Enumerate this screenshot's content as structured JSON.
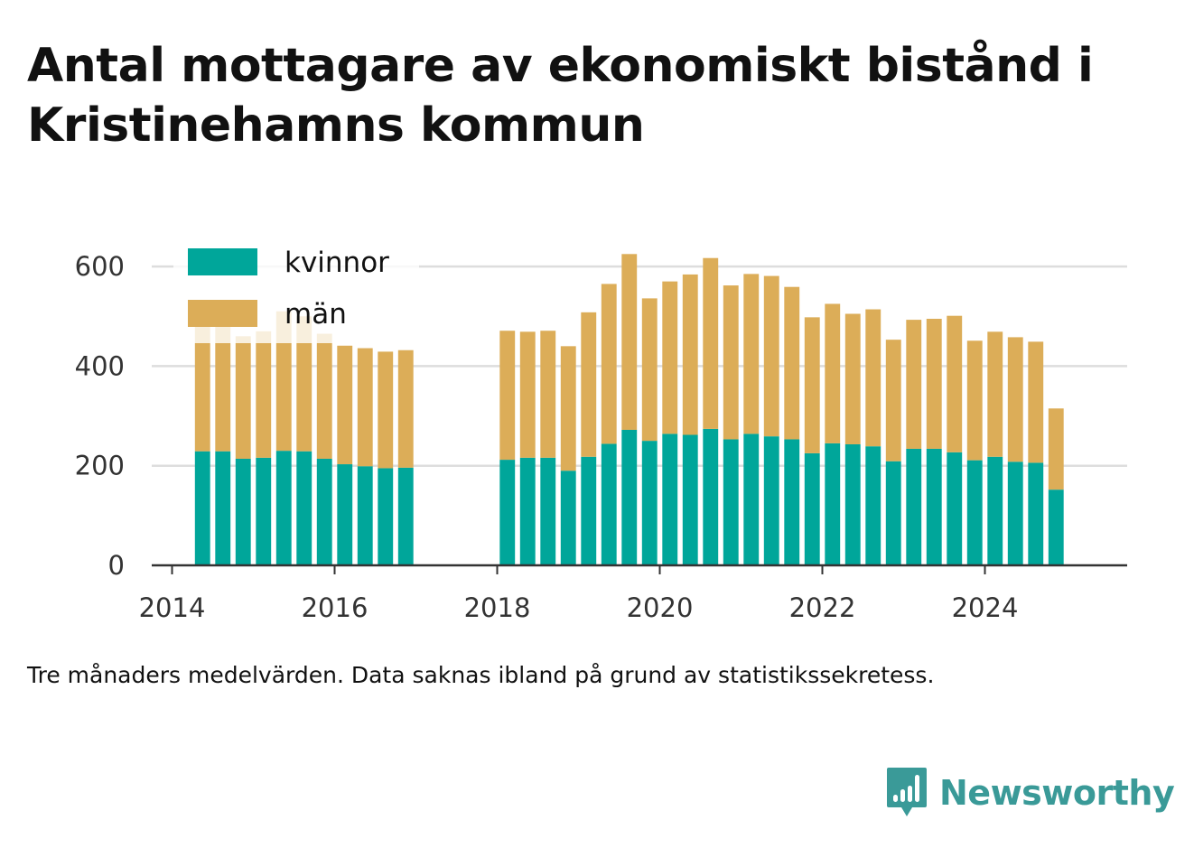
{
  "title": "Antal mottagare av ekonomiskt bistånd i Kristinehamns kommun",
  "caption": "Tre månaders medelvärden. Data saknas ibland på grund av statistikssekretess.",
  "brand": {
    "name": "Newsworthy",
    "icon": "newsworthy-logo-icon",
    "color": "#3a9a98"
  },
  "chart_data": {
    "type": "bar",
    "stacked": true,
    "ylim": [
      0,
      660
    ],
    "yticks": [
      0,
      200,
      400,
      600
    ],
    "xlim": [
      2013.75,
      2025.75
    ],
    "xticks": [
      2014,
      2016,
      2018,
      2020,
      2022,
      2024
    ],
    "grid": "horizontal",
    "legend_position": "top-left",
    "x": [
      2014.375,
      2014.625,
      2014.875,
      2015.125,
      2015.375,
      2015.625,
      2015.875,
      2016.125,
      2016.375,
      2016.625,
      2016.875,
      2018.125,
      2018.375,
      2018.625,
      2018.875,
      2019.125,
      2019.375,
      2019.625,
      2019.875,
      2020.125,
      2020.375,
      2020.625,
      2020.875,
      2021.125,
      2021.375,
      2021.625,
      2021.875,
      2022.125,
      2022.375,
      2022.625,
      2022.875,
      2023.125,
      2023.375,
      2023.625,
      2023.875,
      2024.125,
      2024.375,
      2024.625,
      2024.875
    ],
    "series": [
      {
        "name": "kvinnor",
        "color": "#00a69a",
        "values": [
          229,
          229,
          214,
          216,
          230,
          229,
          214,
          203,
          199,
          195,
          196,
          212,
          216,
          216,
          190,
          218,
          244,
          272,
          250,
          264,
          262,
          274,
          253,
          264,
          259,
          253,
          225,
          245,
          243,
          239,
          209,
          234,
          234,
          227,
          211,
          218,
          208,
          206,
          152
        ]
      },
      {
        "name": "män",
        "color": "#dcad58",
        "values": [
          271,
          271,
          246,
          254,
          280,
          271,
          251,
          238,
          237,
          234,
          236,
          259,
          253,
          255,
          250,
          290,
          321,
          353,
          286,
          306,
          322,
          343,
          309,
          321,
          322,
          306,
          273,
          280,
          262,
          275,
          244,
          259,
          261,
          274,
          240,
          251,
          250,
          243,
          163
        ]
      }
    ]
  }
}
